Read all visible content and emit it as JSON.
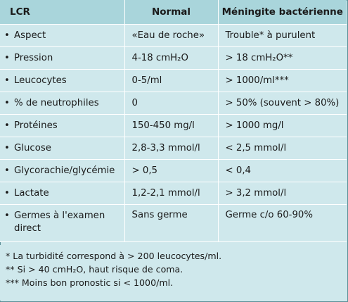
{
  "table": {
    "headers": [
      "LCR",
      "Normal",
      "Méningite bactérienne"
    ],
    "rows": [
      {
        "param": "Aspect",
        "normal": "«Eau de roche»",
        "meningite": "Trouble* à purulent"
      },
      {
        "param": "Pression",
        "normal": "4-18 cmH₂O",
        "meningite": "> 18 cmH₂O**"
      },
      {
        "param": "Leucocytes",
        "normal": "0-5/ml",
        "meningite": "> 1000/ml***"
      },
      {
        "param": "% de neutrophiles",
        "normal": "0",
        "meningite": "> 50% (souvent > 80%)"
      },
      {
        "param": "Protéines",
        "normal": "150-450 mg/l",
        "meningite": "> 1000 mg/l"
      },
      {
        "param": "Glucose",
        "normal": "2,8-3,3 mmol/l",
        "meningite": "< 2,5 mmol/l"
      },
      {
        "param": "Glycorachie/glycémie",
        "normal": "> 0,5",
        "meningite": "< 0,4"
      },
      {
        "param": "Lactate",
        "normal": "1,2-2,1 mmol/l",
        "meningite": "> 3,2 mmol/l"
      },
      {
        "param": "Germes à l'examen direct",
        "normal": "Sans germe",
        "meningite": "Germe c/o 60-90%"
      }
    ]
  },
  "footnotes": [
    "* La turbidité correspond à > 200 leucocytes/ml.",
    "** Si > 40 cmH₂O, haut risque de coma.",
    "*** Moins bon pronostic si < 1000/ml."
  ],
  "bullet_glyph": "•",
  "colors": {
    "header_bg": "#a9d5db",
    "cell_bg": "#cfe8ec",
    "grid_line": "#ffffff"
  }
}
